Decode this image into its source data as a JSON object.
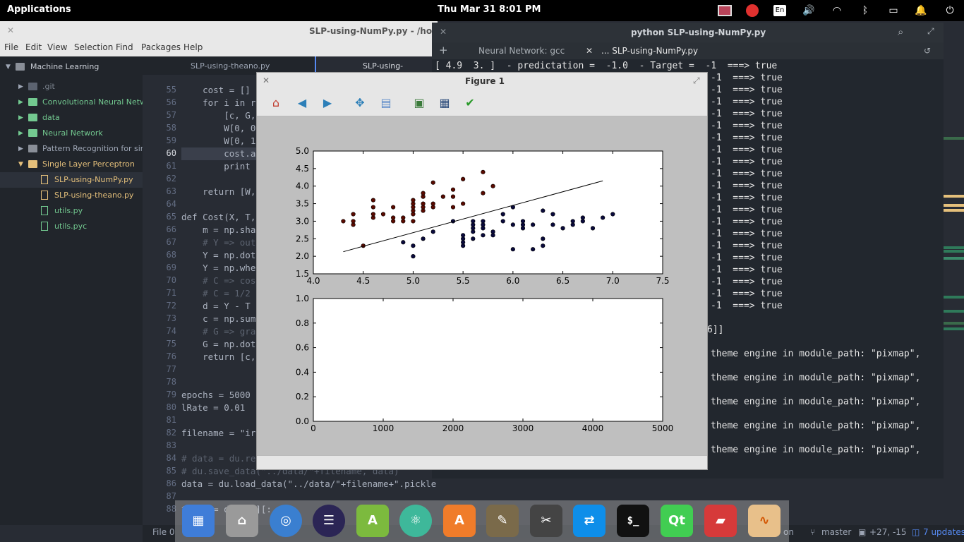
{
  "top_panel": {
    "applications": "Applications",
    "clock": "Thu Mar 31   8:01 PM",
    "keyboard_layout": "En"
  },
  "atom": {
    "window_title": "SLP-using-NumPy.py - /home/a",
    "menu": [
      "File",
      "Edit",
      "View",
      "Selection",
      "Find",
      "Packages",
      "Help"
    ],
    "tree": {
      "root": "Machine Learning",
      "items": [
        {
          "label": ".git",
          "kind": "folder-dim"
        },
        {
          "label": "Convolutional Neural Networl",
          "kind": "folder-green"
        },
        {
          "label": "data",
          "kind": "folder-green"
        },
        {
          "label": "Neural Network",
          "kind": "folder-green"
        },
        {
          "label": "Pattern Recognition for simpl",
          "kind": "folder"
        },
        {
          "label": "Single Layer Perceptron",
          "kind": "folder-open"
        },
        {
          "label": "SLP-using-NumPy.py",
          "kind": "file-yellow"
        },
        {
          "label": "SLP-using-theano.py",
          "kind": "file-yellow"
        },
        {
          "label": "utils.py",
          "kind": "file-green"
        },
        {
          "label": "utils.pyc",
          "kind": "file-green"
        }
      ]
    },
    "tabs": [
      "SLP-using-theano.py",
      "SLP-using-NumPy.py"
    ],
    "line_numbers": [
      "55",
      "56",
      "57",
      "58",
      "59",
      "60",
      "61",
      "62",
      "63",
      "64",
      "65",
      "66",
      "67",
      "68",
      "69",
      "70",
      "71",
      "72",
      "73",
      "74",
      "75",
      "76",
      "77",
      "78",
      "79",
      "80",
      "81",
      "82",
      "83",
      "84",
      "85",
      "86",
      "87",
      "88"
    ],
    "code": [
      "    cost = []",
      "    for i in ra",
      "        [c, G,",
      "        W[0, 0]",
      "        W[0, 1:",
      "        cost.ap",
      "        print \"",
      "",
      "    return [W,",
      "",
      "def Cost(X, T,",
      "    m = np.shap",
      "    # Y => outp",
      "    Y = np.dot(",
      "    Y = np.wher",
      "    # C => cost",
      "    # C = 1/2 *",
      "    d = Y - T",
      "    c = np.sum(",
      "    # G => grad",
      "    G = np.dot(",
      "    return [c,",
      "",
      "",
      "epochs = 5000",
      "lRate = 0.01",
      "",
      "filename = \"iri",
      "",
      "# data = du.rea",
      "# du.save_data(\"../data/\"+filename, data)",
      "data = du.load_data(\"../data/\"+filename+\".pickle\")",
      "",
      "train = data[0][:,:]"
    ],
    "status": {
      "file": "File 0",
      "encoding_fragment": "on",
      "branch": "master",
      "diff": "+27, -15",
      "updates": "7 updates"
    }
  },
  "terminal": {
    "window_title": "python SLP-using-NumPy.py",
    "tabs": [
      "Neural Network: gcc",
      "... SLP-using-NumPy.py"
    ],
    "first_line": "[ 4.9  3. ]  - predictation =  -1.0  - Target =  -1  ===> true",
    "repeated_line": "-1  ===> true",
    "repeat_count": 20,
    "bracket_line": "6]]",
    "warning_line": "theme engine in module_path: \"pixmap\",",
    "warning_count": 5
  },
  "figure": {
    "window_title": "Figure 1",
    "toolbar": [
      "home-icon",
      "back-icon",
      "forward-icon",
      "pan-icon",
      "zoom-icon",
      "subplots-icon",
      "save-icon",
      "check-icon"
    ]
  },
  "chart_data": [
    {
      "type": "scatter",
      "title": "",
      "xlabel": "",
      "ylabel": "",
      "xlim": [
        4.0,
        7.5
      ],
      "ylim": [
        1.5,
        5.0
      ],
      "x_ticks": [
        "4.0",
        "4.5",
        "5.0",
        "5.5",
        "6.0",
        "6.5",
        "7.0",
        "7.5"
      ],
      "y_ticks": [
        "1.5",
        "2.0",
        "2.5",
        "3.0",
        "3.5",
        "4.0",
        "4.5",
        "5.0"
      ],
      "colors": {
        "class_a": "#5a0a00",
        "class_b": "#0a0a3c",
        "line": "#000000"
      },
      "series": [
        {
          "points": [
            [
              4.3,
              3.0
            ],
            [
              4.4,
              2.9
            ],
            [
              4.4,
              3.0
            ],
            [
              4.4,
              3.2
            ],
            [
              4.5,
              2.3
            ],
            [
              4.6,
              3.1
            ],
            [
              4.6,
              3.2
            ],
            [
              4.6,
              3.4
            ],
            [
              4.6,
              3.6
            ],
            [
              4.7,
              3.2
            ],
            [
              4.8,
              3.0
            ],
            [
              4.8,
              3.1
            ],
            [
              4.8,
              3.4
            ],
            [
              4.9,
              3.0
            ],
            [
              4.9,
              3.1
            ],
            [
              5.0,
              3.0
            ],
            [
              5.0,
              3.2
            ],
            [
              5.0,
              3.3
            ],
            [
              5.0,
              3.4
            ],
            [
              5.0,
              3.5
            ],
            [
              5.0,
              3.6
            ],
            [
              5.1,
              3.3
            ],
            [
              5.1,
              3.4
            ],
            [
              5.1,
              3.5
            ],
            [
              5.1,
              3.7
            ],
            [
              5.1,
              3.8
            ],
            [
              5.2,
              3.4
            ],
            [
              5.2,
              3.5
            ],
            [
              5.2,
              4.1
            ],
            [
              5.3,
              3.7
            ],
            [
              5.4,
              3.4
            ],
            [
              5.4,
              3.7
            ],
            [
              5.4,
              3.9
            ],
            [
              5.5,
              3.5
            ],
            [
              5.5,
              4.2
            ],
            [
              5.7,
              3.8
            ],
            [
              5.7,
              4.4
            ],
            [
              5.8,
              4.0
            ]
          ]
        },
        {
          "points": [
            [
              4.9,
              2.4
            ],
            [
              5.0,
              2.0
            ],
            [
              5.0,
              2.3
            ],
            [
              5.1,
              2.5
            ],
            [
              5.2,
              2.7
            ],
            [
              5.4,
              3.0
            ],
            [
              5.5,
              2.3
            ],
            [
              5.5,
              2.4
            ],
            [
              5.5,
              2.5
            ],
            [
              5.5,
              2.6
            ],
            [
              5.6,
              2.5
            ],
            [
              5.6,
              2.7
            ],
            [
              5.6,
              2.8
            ],
            [
              5.6,
              2.9
            ],
            [
              5.6,
              3.0
            ],
            [
              5.7,
              2.6
            ],
            [
              5.7,
              2.8
            ],
            [
              5.7,
              2.9
            ],
            [
              5.7,
              3.0
            ],
            [
              5.8,
              2.6
            ],
            [
              5.8,
              2.7
            ],
            [
              5.9,
              3.0
            ],
            [
              5.9,
              3.2
            ],
            [
              6.0,
              2.2
            ],
            [
              6.0,
              2.9
            ],
            [
              6.0,
              3.4
            ],
            [
              6.1,
              2.8
            ],
            [
              6.1,
              2.9
            ],
            [
              6.1,
              3.0
            ],
            [
              6.2,
              2.2
            ],
            [
              6.2,
              2.9
            ],
            [
              6.3,
              2.3
            ],
            [
              6.3,
              2.5
            ],
            [
              6.3,
              3.3
            ],
            [
              6.4,
              2.9
            ],
            [
              6.4,
              3.2
            ],
            [
              6.5,
              2.8
            ],
            [
              6.6,
              2.9
            ],
            [
              6.6,
              3.0
            ],
            [
              6.7,
              3.0
            ],
            [
              6.7,
              3.1
            ],
            [
              6.8,
              2.8
            ],
            [
              6.9,
              3.1
            ],
            [
              7.0,
              3.2
            ]
          ]
        }
      ],
      "line": {
        "x": [
          4.3,
          6.9
        ],
        "y": [
          2.13,
          4.15
        ]
      }
    },
    {
      "type": "line",
      "title": "",
      "xlabel": "",
      "ylabel": "",
      "xlim": [
        0,
        5000
      ],
      "ylim": [
        0.0,
        1.0
      ],
      "x_ticks": [
        "0",
        "1000",
        "2000",
        "3000",
        "4000",
        "5000"
      ],
      "y_ticks": [
        "0.0",
        "0.2",
        "0.4",
        "0.6",
        "0.8",
        "1.0"
      ],
      "series": []
    }
  ]
}
